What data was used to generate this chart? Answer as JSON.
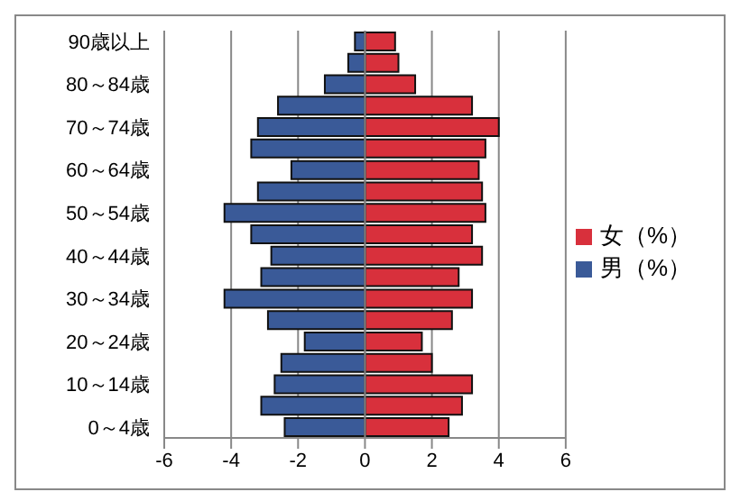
{
  "chart_data": {
    "type": "bar",
    "orientation": "horizontal",
    "stacked": true,
    "categories": [
      "90歳以上",
      null,
      "80～84歳",
      null,
      "70～74歳",
      null,
      "60～64歳",
      null,
      "50～54歳",
      null,
      "40～44歳",
      null,
      "30～34歳",
      null,
      "20～24歳",
      null,
      "10～14歳",
      null,
      "0～4歳"
    ],
    "series": [
      {
        "name": "女（%）",
        "color": "#d8303c",
        "values": [
          0.9,
          1.0,
          1.5,
          3.2,
          4.0,
          3.6,
          3.4,
          3.5,
          3.6,
          3.2,
          3.5,
          2.8,
          3.2,
          2.6,
          1.7,
          2.0,
          3.2,
          2.9,
          2.5
        ]
      },
      {
        "name": "男（%）",
        "color": "#3a5a98",
        "values": [
          -0.3,
          -0.5,
          -1.2,
          -2.6,
          -3.2,
          -3.4,
          -2.2,
          -3.2,
          -4.2,
          -3.4,
          -2.8,
          -3.1,
          -4.2,
          -2.9,
          -1.8,
          -2.5,
          -2.7,
          -3.1,
          -2.4
        ]
      }
    ],
    "xlim": [
      -6,
      6
    ],
    "xticks": [
      -6,
      -4,
      -2,
      0,
      2,
      4,
      6
    ],
    "grid": "x",
    "legend": "right"
  }
}
